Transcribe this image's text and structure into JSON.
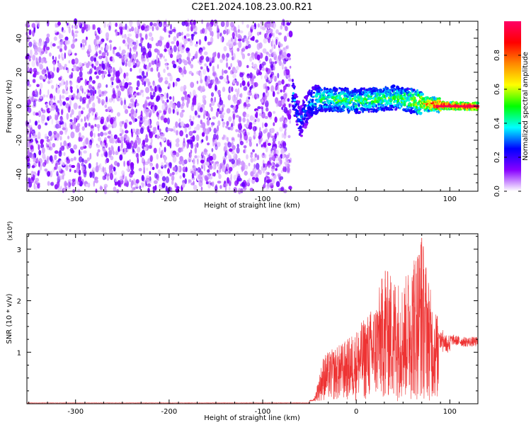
{
  "title": "C2E1.2024.108.23.00.R21",
  "chart_data": [
    {
      "type": "heatmap",
      "xlabel": "Height of straight line (km)",
      "ylabel": "Frequency (Hz)",
      "xlim": [
        -352,
        130
      ],
      "ylim": [
        -50,
        50
      ],
      "xticks": [
        -300,
        -200,
        -100,
        0,
        100
      ],
      "yticks": [
        -40,
        -20,
        0,
        20,
        40
      ],
      "colorbar": {
        "label": "Normalized spectral amplitude",
        "range": [
          0,
          1
        ],
        "ticks": [
          "0.0",
          "0.2",
          "0.4",
          "0.6",
          "0.8"
        ],
        "colors": [
          "#ffffff",
          "#8800ff",
          "#0000ff",
          "#00ffff",
          "#00ff00",
          "#ffff00",
          "#ff8800",
          "#ff0000",
          "#ff0066"
        ]
      },
      "noise_region": {
        "x": [
          -352,
          -70
        ],
        "amplitude": 0.1
      },
      "signal_track": [
        {
          "x": -68,
          "y": 8,
          "amplitude": 0.3
        },
        {
          "x": -60,
          "y": -10,
          "amplitude": 0.25
        },
        {
          "x": -50,
          "y": 2,
          "amplitude": 0.3
        },
        {
          "x": -40,
          "y": 4,
          "amplitude": 0.4
        },
        {
          "x": -20,
          "y": 4,
          "amplitude": 0.45
        },
        {
          "x": 0,
          "y": 3,
          "amplitude": 0.45
        },
        {
          "x": 20,
          "y": 4,
          "amplitude": 0.45
        },
        {
          "x": 40,
          "y": 5,
          "amplitude": 0.45
        },
        {
          "x": 60,
          "y": 3,
          "amplitude": 0.5
        },
        {
          "x": 75,
          "y": 1.5,
          "amplitude": 0.7
        },
        {
          "x": 90,
          "y": 0.5,
          "amplitude": 0.85
        },
        {
          "x": 110,
          "y": 0,
          "amplitude": 0.95
        },
        {
          "x": 128,
          "y": 0,
          "amplitude": 0.95
        }
      ]
    },
    {
      "type": "line",
      "xlabel": "Height of straight line (km)",
      "ylabel": "SNR (10 * v/v)",
      "yscale_label": "(x10⁴)",
      "xlim": [
        -352,
        130
      ],
      "ylim": [
        0,
        3.3
      ],
      "xticks": [
        -300,
        -200,
        -100,
        0,
        100
      ],
      "yticks": [
        1,
        2,
        3
      ],
      "color": "#ee3333",
      "envelope": [
        {
          "x": -352,
          "y": 0.01
        },
        {
          "x": -50,
          "y": 0.01
        },
        {
          "x": -45,
          "y": 0.05
        },
        {
          "x": -35,
          "y": 0.9
        },
        {
          "x": -10,
          "y": 1.2
        },
        {
          "x": 0,
          "y": 1.4
        },
        {
          "x": 20,
          "y": 1.9
        },
        {
          "x": 30,
          "y": 2.6
        },
        {
          "x": 50,
          "y": 2.3
        },
        {
          "x": 60,
          "y": 2.8
        },
        {
          "x": 70,
          "y": 3.3
        },
        {
          "x": 80,
          "y": 2.1
        },
        {
          "x": 90,
          "y": 1.5
        },
        {
          "x": 100,
          "y": 1.35
        },
        {
          "x": 115,
          "y": 1.3
        },
        {
          "x": 130,
          "y": 1.3
        }
      ],
      "spikes": [
        {
          "x": 31,
          "y": 2.58
        },
        {
          "x": 40,
          "y": 2.2
        },
        {
          "x": 62,
          "y": 2.7
        },
        {
          "x": 70,
          "y": 3.22
        }
      ]
    }
  ]
}
